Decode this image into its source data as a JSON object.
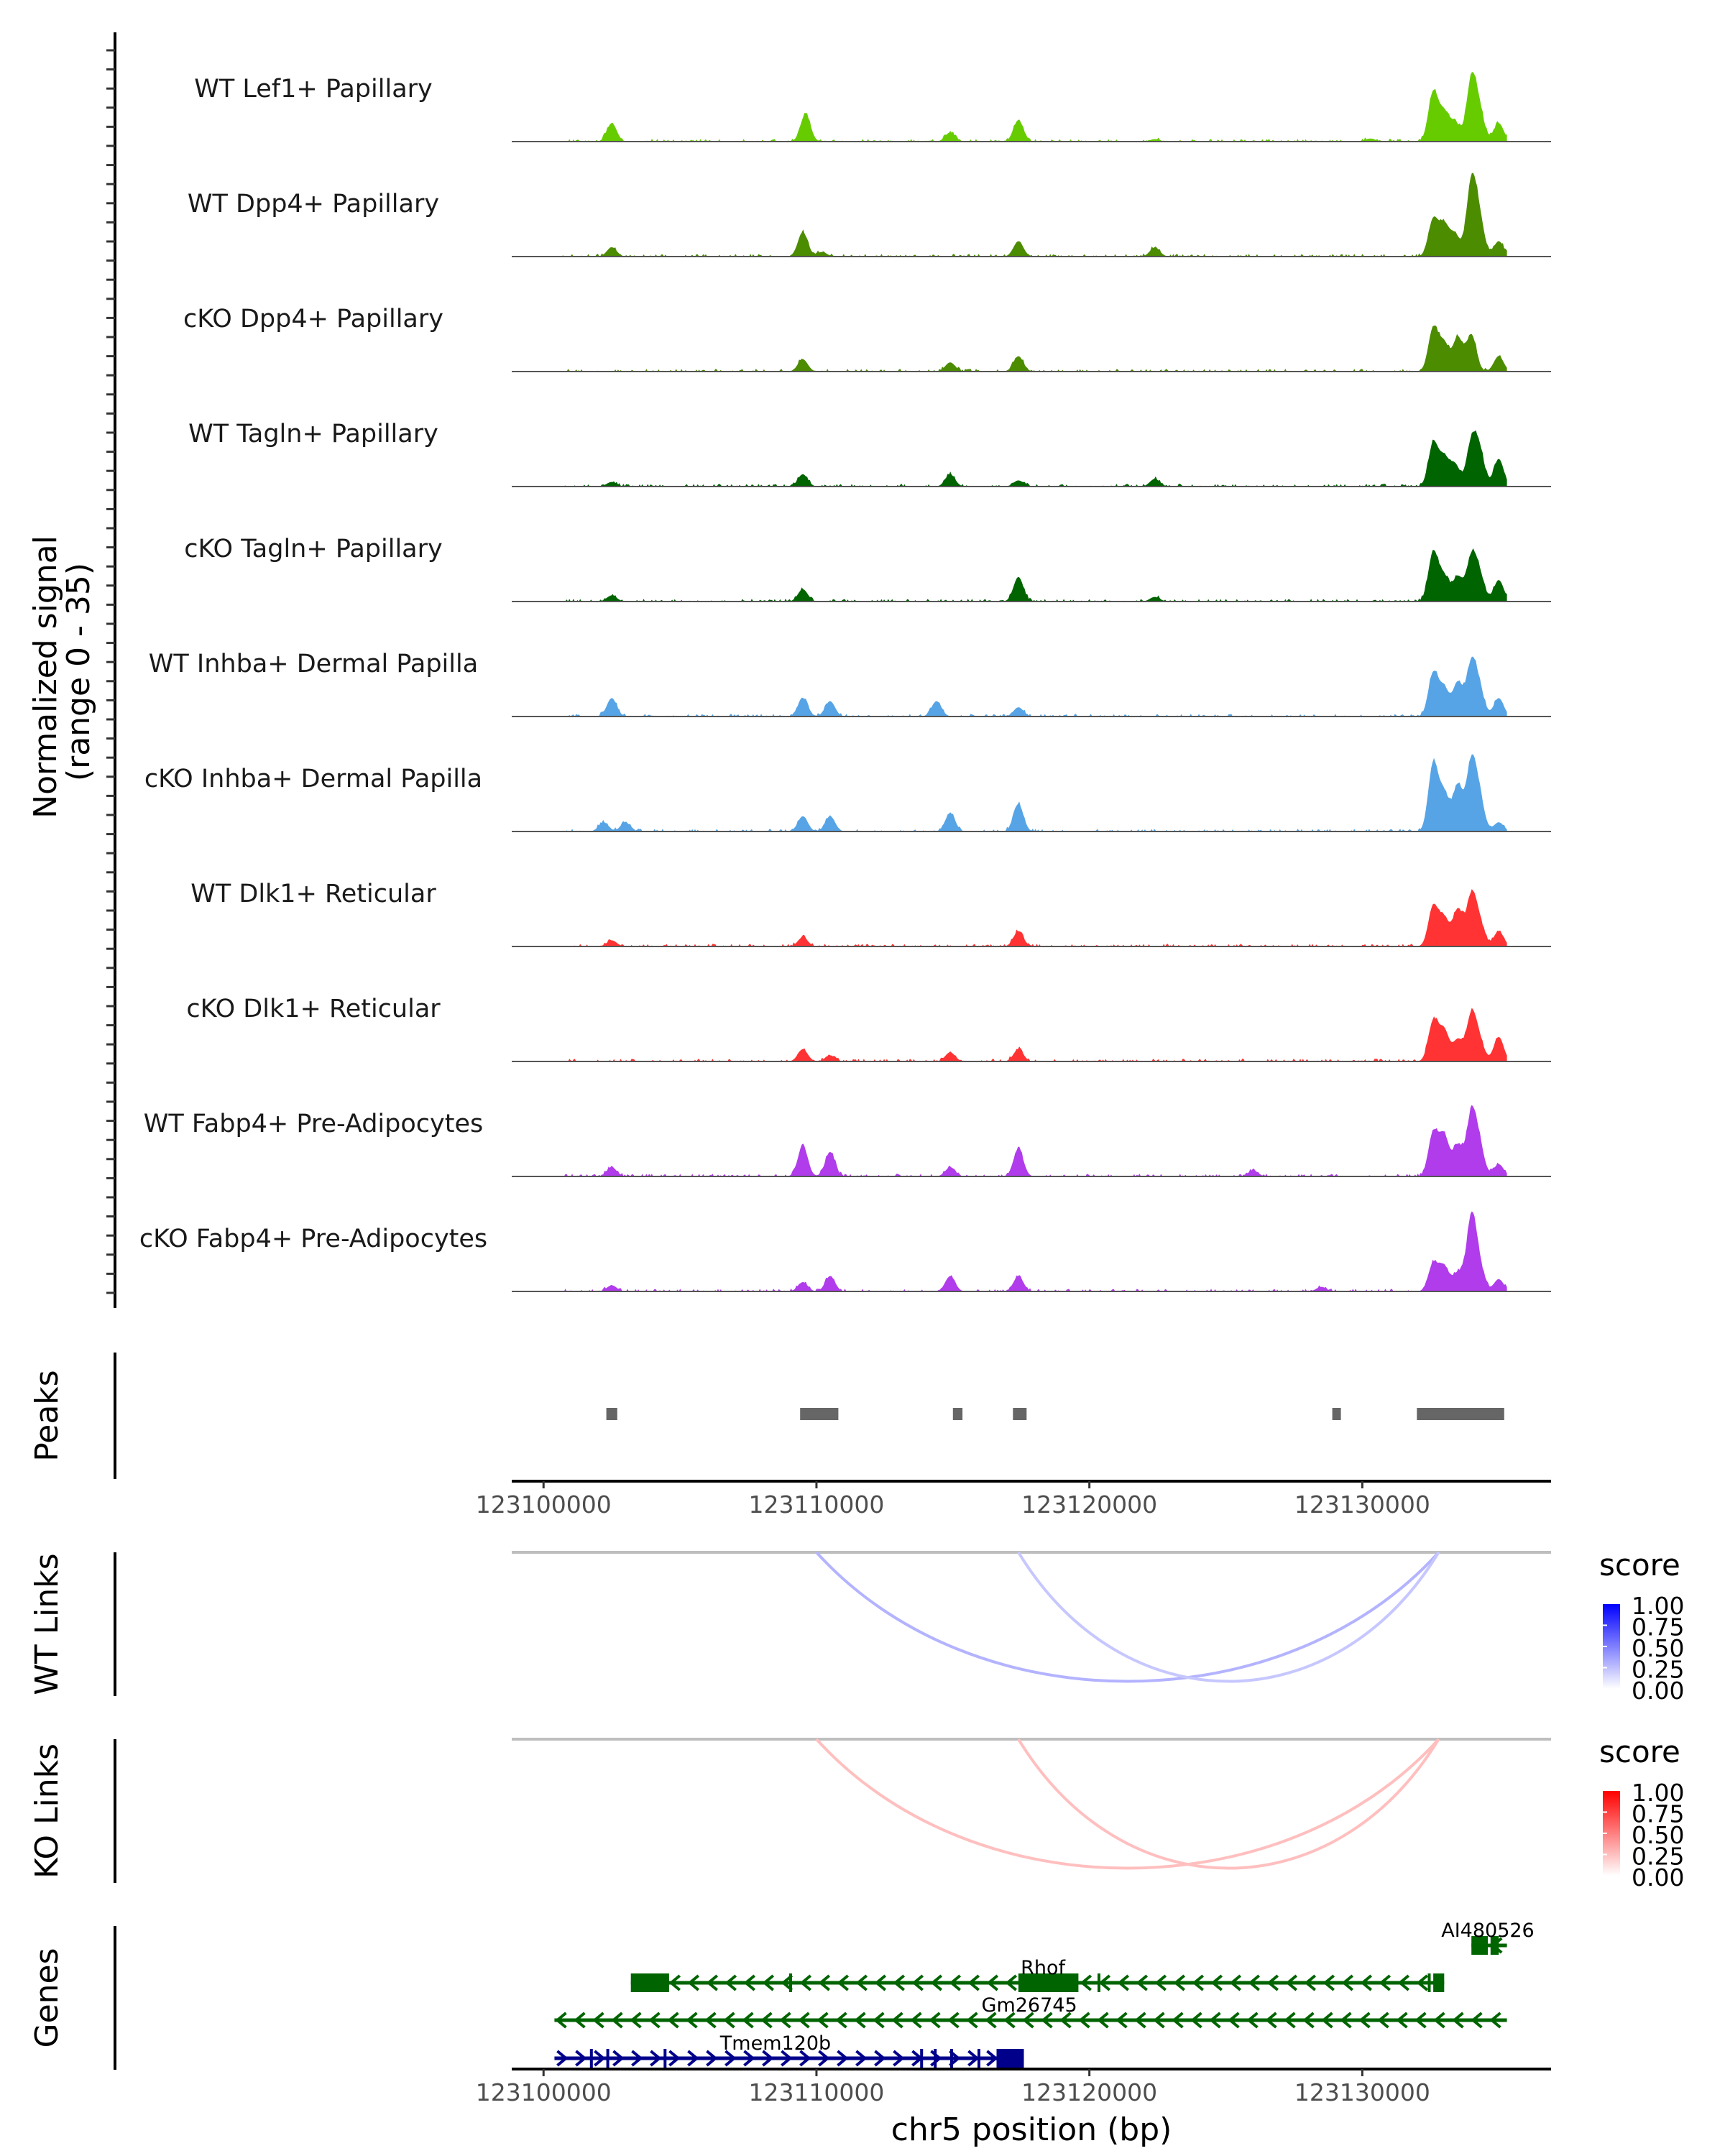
{
  "chart_data": {
    "type": "area",
    "title": "",
    "chromosome": "chr5",
    "xlabel": "chr5 position (bp)",
    "ylabel": "Normalized signal\n(range 0 - 35)",
    "ylabel_lines": [
      "Normalized signal",
      "(range 0 - 35)"
    ],
    "xlim": [
      123098835,
      123136917
    ],
    "ylim": [
      0,
      35
    ],
    "x_ticks": [
      123100000,
      123110000,
      123120000,
      123130000
    ],
    "x_tick_labels": [
      "123100000",
      "123110000",
      "123120000",
      "123130000"
    ],
    "coverage_tracks": [
      {
        "name": "WT Lef1+ Papillary",
        "color": "#66CC00",
        "peaks": [
          [
            123102500,
            6
          ],
          [
            123109600,
            9
          ],
          [
            123114900,
            3
          ],
          [
            123117400,
            7
          ],
          [
            123122400,
            0.8
          ],
          [
            123130300,
            1
          ],
          [
            123132600,
            16
          ],
          [
            123133000,
            9
          ],
          [
            123133400,
            6
          ],
          [
            123134000,
            20
          ],
          [
            123134300,
            9
          ],
          [
            123135000,
            6
          ]
        ]
      },
      {
        "name": "WT Dpp4+ Papillary",
        "color": "#4C8C00",
        "peaks": [
          [
            123102500,
            3
          ],
          [
            123109500,
            8
          ],
          [
            123110200,
            1.5
          ],
          [
            123117400,
            5
          ],
          [
            123122400,
            3
          ],
          [
            123132600,
            12
          ],
          [
            123133000,
            10
          ],
          [
            123133400,
            7
          ],
          [
            123134000,
            24
          ],
          [
            123134300,
            11
          ],
          [
            123135000,
            5
          ]
        ]
      },
      {
        "name": "cKO Dpp4+ Papillary",
        "color": "#4C8C00",
        "peaks": [
          [
            123109500,
            4
          ],
          [
            123114900,
            3
          ],
          [
            123117400,
            5
          ],
          [
            123132600,
            14
          ],
          [
            123133000,
            9
          ],
          [
            123133500,
            11
          ],
          [
            123134000,
            12
          ],
          [
            123135000,
            5
          ]
        ]
      },
      {
        "name": "WT Tagln+ Papillary",
        "color": "#006400",
        "peaks": [
          [
            123102500,
            1.5
          ],
          [
            123109500,
            4
          ],
          [
            123114900,
            4
          ],
          [
            123117400,
            2
          ],
          [
            123122400,
            2.5
          ],
          [
            123132600,
            14
          ],
          [
            123133000,
            9
          ],
          [
            123133400,
            7
          ],
          [
            123134000,
            14
          ],
          [
            123134300,
            11
          ],
          [
            123135000,
            9
          ]
        ]
      },
      {
        "name": "cKO Tagln+ Papillary",
        "color": "#006400",
        "peaks": [
          [
            123102500,
            2
          ],
          [
            123109500,
            4
          ],
          [
            123117400,
            8
          ],
          [
            123122400,
            1.5
          ],
          [
            123132600,
            16
          ],
          [
            123133000,
            8
          ],
          [
            123133500,
            8
          ],
          [
            123134000,
            14
          ],
          [
            123134300,
            8
          ],
          [
            123135000,
            7
          ]
        ]
      },
      {
        "name": "WT Inhba+ Dermal Papilla",
        "color": "#56A4E6",
        "peaks": [
          [
            123102500,
            6
          ],
          [
            123109500,
            6
          ],
          [
            123110500,
            5
          ],
          [
            123114400,
            5
          ],
          [
            123117400,
            3
          ],
          [
            123132600,
            14
          ],
          [
            123133000,
            9
          ],
          [
            123133500,
            11
          ],
          [
            123134000,
            17
          ],
          [
            123134300,
            8
          ],
          [
            123135000,
            6
          ]
        ]
      },
      {
        "name": "cKO Inhba+ Dermal Papilla",
        "color": "#56A4E6",
        "peaks": [
          [
            123102200,
            3
          ],
          [
            123103000,
            3
          ],
          [
            123109500,
            5
          ],
          [
            123110500,
            5
          ],
          [
            123114900,
            6
          ],
          [
            123117400,
            9
          ],
          [
            123132600,
            22
          ],
          [
            123133000,
            12
          ],
          [
            123133500,
            15
          ],
          [
            123134000,
            22
          ],
          [
            123134300,
            10
          ],
          [
            123135000,
            3
          ]
        ]
      },
      {
        "name": "WT Dlk1+ Reticular",
        "color": "#FF3333",
        "peaks": [
          [
            123102500,
            2
          ],
          [
            123109500,
            3
          ],
          [
            123117400,
            5
          ],
          [
            123132600,
            13
          ],
          [
            123133000,
            9
          ],
          [
            123133500,
            12
          ],
          [
            123134000,
            16
          ],
          [
            123134300,
            7
          ],
          [
            123135000,
            5
          ]
        ]
      },
      {
        "name": "cKO Dlk1+ Reticular",
        "color": "#FF3333",
        "peaks": [
          [
            123109500,
            4
          ],
          [
            123110500,
            2
          ],
          [
            123114900,
            3
          ],
          [
            123117400,
            4
          ],
          [
            123132600,
            13
          ],
          [
            123133000,
            10
          ],
          [
            123133500,
            7
          ],
          [
            123134000,
            15
          ],
          [
            123134300,
            6
          ],
          [
            123135000,
            8
          ]
        ]
      },
      {
        "name": "WT Fabp4+ Pre-Adipocytes",
        "color": "#B03CEB",
        "peaks": [
          [
            123102500,
            3
          ],
          [
            123109500,
            10
          ],
          [
            123110500,
            8
          ],
          [
            123114900,
            3
          ],
          [
            123117400,
            9
          ],
          [
            123126000,
            2
          ],
          [
            123132600,
            14
          ],
          [
            123133000,
            13
          ],
          [
            123133500,
            10
          ],
          [
            123134000,
            20
          ],
          [
            123134300,
            9
          ],
          [
            123135000,
            4
          ]
        ]
      },
      {
        "name": "cKO Fabp4+ Pre-Adipocytes",
        "color": "#B03CEB",
        "peaks": [
          [
            123102500,
            2
          ],
          [
            123109500,
            3
          ],
          [
            123110500,
            5
          ],
          [
            123114900,
            5
          ],
          [
            123117400,
            5
          ],
          [
            123128500,
            1.5
          ],
          [
            123132600,
            9
          ],
          [
            123133000,
            8
          ],
          [
            123133500,
            6
          ],
          [
            123134000,
            24
          ],
          [
            123134300,
            7
          ],
          [
            123135000,
            4
          ]
        ]
      }
    ],
    "peaks_track": {
      "label": "Peaks",
      "color": "#666666",
      "regions": [
        [
          123102300,
          123102700
        ],
        [
          123109400,
          123110800
        ],
        [
          123115000,
          123115350
        ],
        [
          123117200,
          123117700
        ],
        [
          123128900,
          123129200
        ],
        [
          123132000,
          123135200
        ]
      ]
    },
    "links_tracks": [
      {
        "label": "WT Links",
        "legend_title": "score",
        "legend_ticks": [
          "1.00",
          "0.75",
          "0.50",
          "0.25",
          "0.00"
        ],
        "low_color": "#FFFFFF",
        "high_color": "#0000FF",
        "links": [
          {
            "start": 123110000,
            "end": 123132800,
            "score": 0.3
          },
          {
            "start": 123117400,
            "end": 123132800,
            "score": 0.22
          }
        ]
      },
      {
        "label": "KO Links",
        "legend_title": "score",
        "legend_ticks": [
          "1.00",
          "0.75",
          "0.50",
          "0.25",
          "0.00"
        ],
        "low_color": "#FFFFFF",
        "high_color": "#FF0000",
        "links": [
          {
            "start": 123110000,
            "end": 123132800,
            "score": 0.25
          },
          {
            "start": 123117400,
            "end": 123132800,
            "score": 0.25
          }
        ]
      }
    ],
    "genes_track": {
      "label": "Genes",
      "genes": [
        {
          "name": "AI480526",
          "strand": "-",
          "color": "#006400",
          "row": 0,
          "start": 123134000,
          "end": 123135300,
          "exons": [
            [
              123134000,
              123134600
            ],
            [
              123134700,
              123135000
            ]
          ]
        },
        {
          "name": "Rhof",
          "strand": "-",
          "color": "#006400",
          "row": 1,
          "start": 123103200,
          "end": 123133000,
          "exons": [
            [
              123103200,
              123104600
            ],
            [
              123109000,
              123109050
            ],
            [
              123117400,
              123119600
            ],
            [
              123120300,
              123120400
            ],
            [
              123132400,
              123132500
            ],
            [
              123132600,
              123133000
            ]
          ]
        },
        {
          "name": "Gm26745",
          "strand": "-",
          "color": "#006400",
          "row": 2,
          "start": 123100400,
          "end": 123135300,
          "exons": []
        },
        {
          "name": "Tmem120b",
          "strand": "+",
          "color": "#00008B",
          "row": 3,
          "start": 123100400,
          "end": 123117600,
          "exons": [
            [
              123101700,
              123101750
            ],
            [
              123102300,
              123102350
            ],
            [
              123104400,
              123104500
            ],
            [
              123113800,
              123113850
            ],
            [
              123114300,
              123114350
            ],
            [
              123114900,
              123114950
            ],
            [
              123115900,
              123115950
            ],
            [
              123116600,
              123117600
            ]
          ]
        }
      ]
    }
  }
}
